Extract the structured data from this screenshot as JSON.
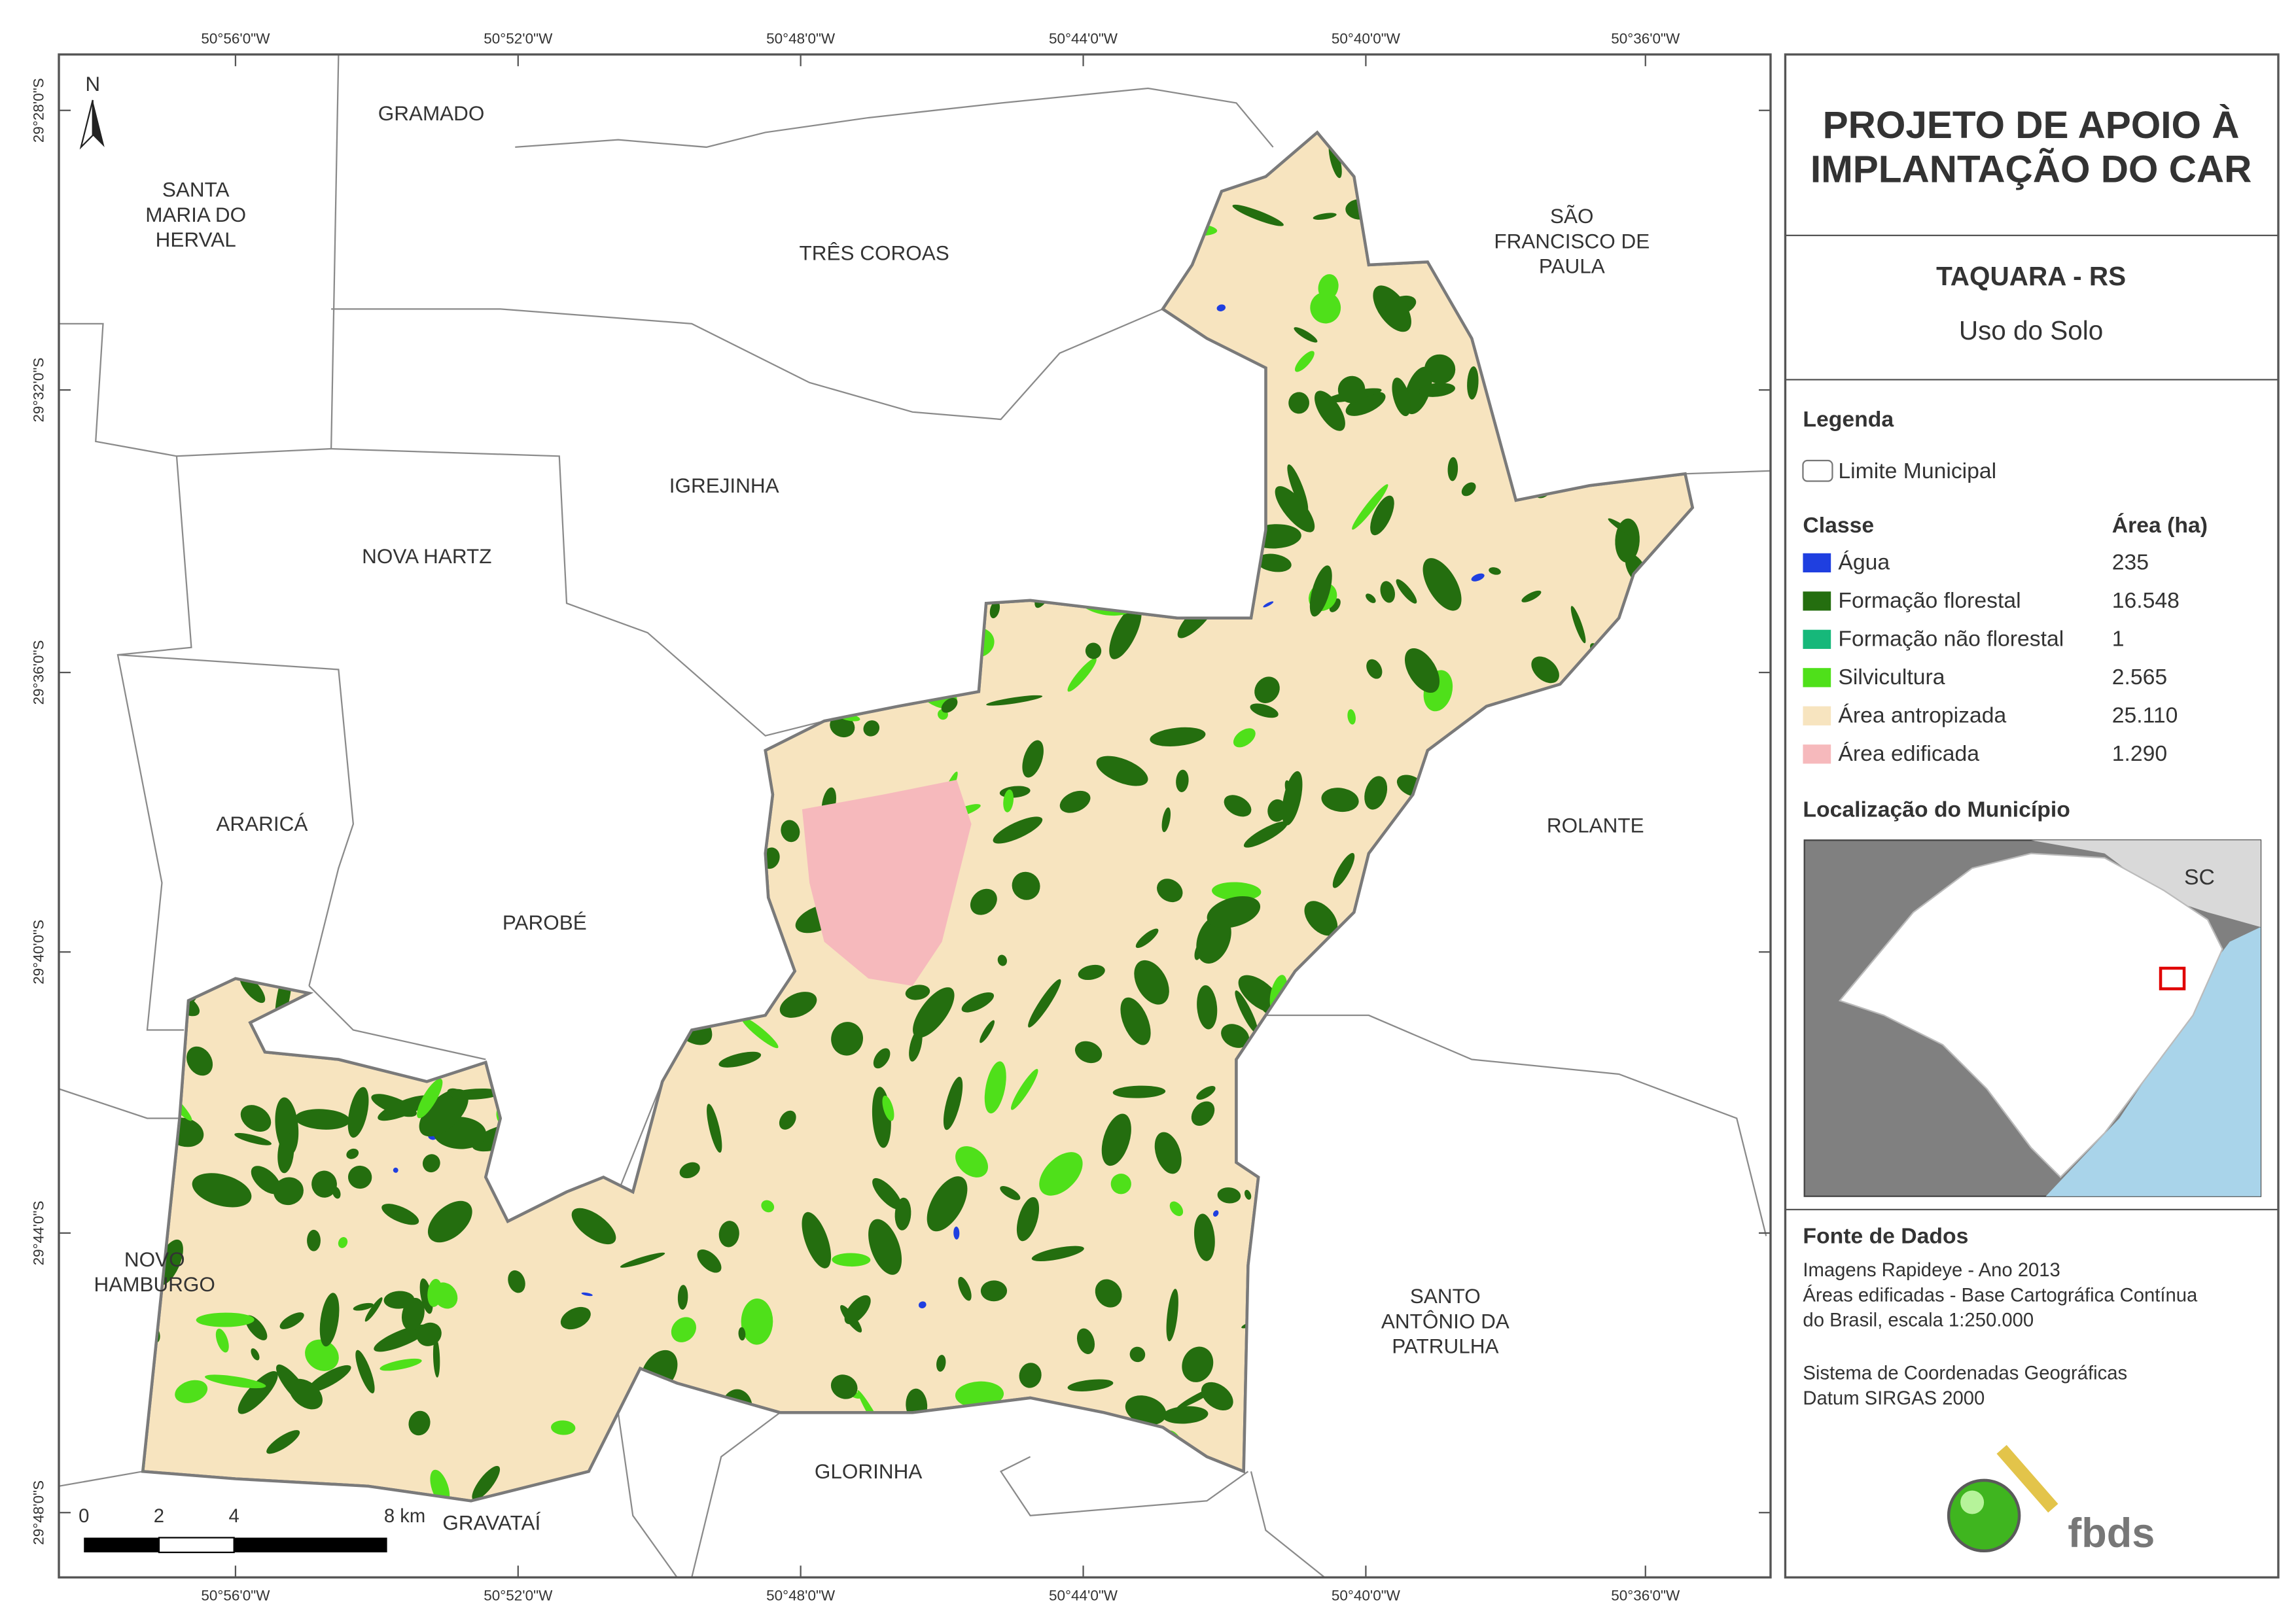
{
  "title": [
    "PROJETO DE APOIO À",
    "IMPLANTAÇÃO DO CAR"
  ],
  "municipality": "TAQUARA - RS",
  "subtitle": "Uso do Solo",
  "legend": {
    "title": "Legenda",
    "boundary": "Limite Municipal",
    "class_header": "Classe",
    "area_header": "Área (ha)",
    "classes": [
      {
        "name": "Água",
        "color": "#1f3fe0",
        "area": "235"
      },
      {
        "name": "Formação florestal",
        "color": "#246e0f",
        "area": "16.548"
      },
      {
        "name": "Formação não florestal",
        "color": "#16b87a",
        "area": "1"
      },
      {
        "name": "Silvicultura",
        "color": "#4fe01a",
        "area": "2.565"
      },
      {
        "name": "Área antropizada",
        "color": "#f7e4bf",
        "area": "25.110"
      },
      {
        "name": "Área edificada",
        "color": "#f6b9bc",
        "area": "1.290"
      }
    ]
  },
  "location": {
    "title": "Localização do Município",
    "label": "SC"
  },
  "sources": {
    "title": "Fonte de Dados",
    "lines": [
      "Imagens Rapideye - Ano 2013",
      "Áreas edificadas - Base Cartográfica Contínua",
      "do Brasil, escala 1:250.000",
      "Sistema de Coordenadas Geográficas",
      "Datum SIRGAS 2000"
    ]
  },
  "map": {
    "north": "N",
    "labels": [
      [
        "GRAMADO"
      ],
      [
        "SANTA",
        "MARIA DO",
        "HERVAL"
      ],
      [
        "TRÊS COROAS"
      ],
      [
        "SÃO",
        "FRANCISCO DE",
        "PAULA"
      ],
      [
        "IGREJINHA"
      ],
      [
        "NOVA HARTZ"
      ],
      [
        "ARARICÁ"
      ],
      [
        "PAROBÉ"
      ],
      [
        "ROLANTE"
      ],
      [
        "NOVO",
        "HAMBURGO"
      ],
      [
        "SANTO",
        "ANTÔNIO DA",
        "PATRULHA"
      ],
      [
        "GLORINHA"
      ],
      [
        "GRAVATAÍ"
      ]
    ],
    "lon_ticks": [
      "50°56'0\"W",
      "50°52'0\"W",
      "50°48'0\"W",
      "50°44'0\"W",
      "50°40'0\"W",
      "50°36'0\"W"
    ],
    "lat_ticks": [
      "29°28'0\"S",
      "29°32'0\"S",
      "29°36'0\"S",
      "29°40'0\"S",
      "29°44'0\"S",
      "29°48'0\"S"
    ],
    "scale": [
      "0",
      "2",
      "4",
      "8 km"
    ]
  },
  "logo": "fbds"
}
